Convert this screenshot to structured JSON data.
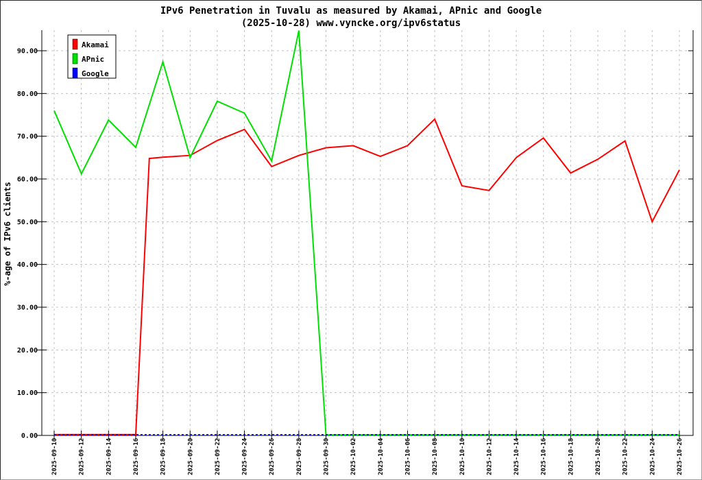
{
  "chart_data": {
    "type": "line",
    "title": "IPv6 Penetration in Tuvalu as measured by Akamai, APnic and Google",
    "subtitle": "(2025-10-28) www.vyncke.org/ipv6status",
    "ylabel": "%-age of IPv6 clients",
    "xlabel": "",
    "ylim": [
      0,
      95
    ],
    "grid": true,
    "legend_position": "top-left",
    "y_ticks": [
      {
        "value": 0,
        "label": "0.00"
      },
      {
        "value": 10,
        "label": "10.00"
      },
      {
        "value": 20,
        "label": "20.00"
      },
      {
        "value": 30,
        "label": "30.00"
      },
      {
        "value": 40,
        "label": "40.00"
      },
      {
        "value": 50,
        "label": "50.00"
      },
      {
        "value": 60,
        "label": "60.00"
      },
      {
        "value": 70,
        "label": "70.00"
      },
      {
        "value": 80,
        "label": "80.00"
      },
      {
        "value": 90,
        "label": "90.00"
      }
    ],
    "x_ticks": [
      "2025-09-10",
      "2025-09-12",
      "2025-09-14",
      "2025-09-16",
      "2025-09-18",
      "2025-09-20",
      "2025-09-22",
      "2025-09-24",
      "2025-09-26",
      "2025-09-28",
      "2025-09-30",
      "2025-10-02",
      "2025-10-04",
      "2025-10-06",
      "2025-10-08",
      "2025-10-10",
      "2025-10-12",
      "2025-10-14",
      "2025-10-16",
      "2025-10-18",
      "2025-10-20",
      "2025-10-22",
      "2025-10-24",
      "2025-10-26"
    ],
    "series": [
      {
        "name": "Akamai",
        "color": "#ff0000",
        "style": "solid",
        "points": [
          [
            "2025-09-10",
            0.2
          ],
          [
            "2025-09-12",
            0.2
          ],
          [
            "2025-09-14",
            0.2
          ],
          [
            "2025-09-16",
            0.2
          ],
          [
            "2025-09-17",
            64.8
          ],
          [
            "2025-09-18",
            65.1
          ],
          [
            "2025-09-20",
            65.5
          ],
          [
            "2025-09-22",
            69.0
          ],
          [
            "2025-09-24",
            71.6
          ],
          [
            "2025-09-26",
            62.9
          ],
          [
            "2025-09-28",
            65.5
          ],
          [
            "2025-09-30",
            67.3
          ],
          [
            "2025-10-02",
            67.8
          ],
          [
            "2025-10-04",
            65.3
          ],
          [
            "2025-10-06",
            67.8
          ],
          [
            "2025-10-08",
            74.0
          ],
          [
            "2025-10-10",
            58.4
          ],
          [
            "2025-10-12",
            57.3
          ],
          [
            "2025-10-14",
            65.0
          ],
          [
            "2025-10-16",
            69.6
          ],
          [
            "2025-10-18",
            61.4
          ],
          [
            "2025-10-20",
            64.6
          ],
          [
            "2025-10-22",
            68.9
          ],
          [
            "2025-10-24",
            50.0
          ],
          [
            "2025-10-26",
            62.1
          ]
        ]
      },
      {
        "name": "APnic",
        "color": "#00e000",
        "style": "solid",
        "points": [
          [
            "2025-09-10",
            76.0
          ],
          [
            "2025-09-12",
            61.2
          ],
          [
            "2025-09-14",
            73.8
          ],
          [
            "2025-09-16",
            67.4
          ],
          [
            "2025-09-18",
            87.4
          ],
          [
            "2025-09-20",
            65.0
          ],
          [
            "2025-09-22",
            78.2
          ],
          [
            "2025-09-24",
            75.4
          ],
          [
            "2025-09-26",
            64.2
          ],
          [
            "2025-09-28",
            94.7
          ],
          [
            "2025-09-30",
            0.15
          ],
          [
            "2025-10-02",
            0.15
          ],
          [
            "2025-10-04",
            0.15
          ],
          [
            "2025-10-06",
            0.15
          ],
          [
            "2025-10-08",
            0.15
          ],
          [
            "2025-10-10",
            0.15
          ],
          [
            "2025-10-12",
            0.15
          ],
          [
            "2025-10-14",
            0.15
          ],
          [
            "2025-10-16",
            0.15
          ],
          [
            "2025-10-18",
            0.15
          ],
          [
            "2025-10-20",
            0.15
          ],
          [
            "2025-10-22",
            0.15
          ],
          [
            "2025-10-24",
            0.15
          ],
          [
            "2025-10-26",
            0.15
          ]
        ]
      },
      {
        "name": "Google",
        "color": "#0000ff",
        "style": "dotted",
        "points": [
          [
            "2025-09-10",
            0.15
          ],
          [
            "2025-09-12",
            0.15
          ],
          [
            "2025-09-14",
            0.15
          ],
          [
            "2025-09-16",
            0.15
          ],
          [
            "2025-09-18",
            0.15
          ],
          [
            "2025-09-20",
            0.15
          ],
          [
            "2025-09-22",
            0.15
          ],
          [
            "2025-09-24",
            0.15
          ],
          [
            "2025-09-26",
            0.15
          ],
          [
            "2025-09-28",
            0.15
          ],
          [
            "2025-09-30",
            0.15
          ],
          [
            "2025-10-02",
            0.15
          ],
          [
            "2025-10-04",
            0.15
          ],
          [
            "2025-10-06",
            0.15
          ],
          [
            "2025-10-08",
            0.15
          ],
          [
            "2025-10-10",
            0.15
          ],
          [
            "2025-10-12",
            0.15
          ],
          [
            "2025-10-14",
            0.15
          ],
          [
            "2025-10-16",
            0.15
          ],
          [
            "2025-10-18",
            0.15
          ],
          [
            "2025-10-20",
            0.15
          ],
          [
            "2025-10-22",
            0.15
          ],
          [
            "2025-10-24",
            0.15
          ],
          [
            "2025-10-26",
            0.15
          ]
        ]
      }
    ]
  }
}
